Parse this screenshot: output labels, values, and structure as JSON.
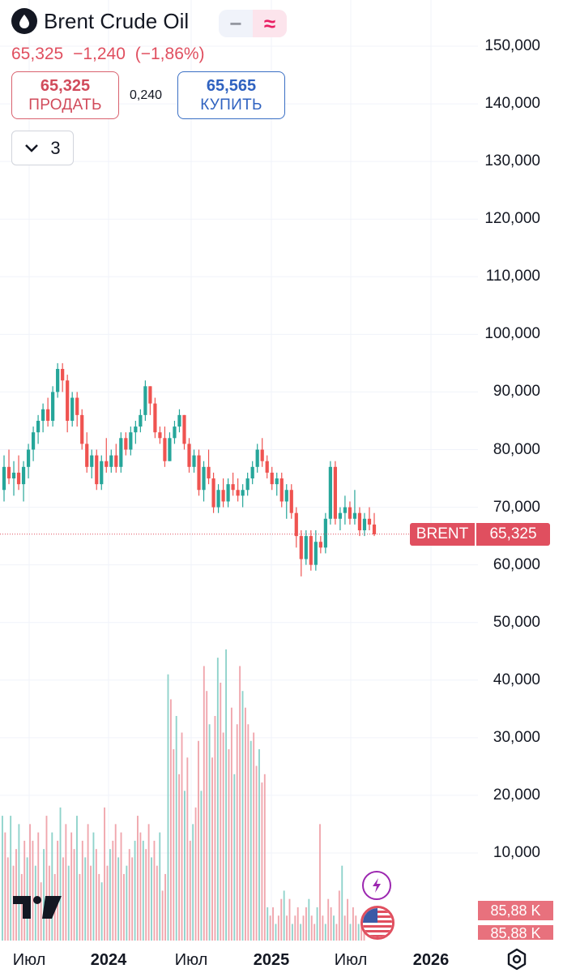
{
  "header": {
    "title": "Brent Crude Oil",
    "drop_icon": "drop-icon",
    "toggle_minus": "−",
    "toggle_approx": "≈"
  },
  "quote": {
    "last": "65,325",
    "change": "−1,240",
    "change_pct": "(−1,86%)"
  },
  "trade": {
    "sell_price": "65,325",
    "sell_label": "ПРОДАТЬ",
    "spread": "0,240",
    "buy_price": "65,565",
    "buy_label": "КУПИТЬ"
  },
  "indicators": {
    "count": "3",
    "chevron_icon": "chevron-down-icon"
  },
  "price_axis": {
    "labels": [
      "150,000",
      "140,000",
      "130,000",
      "120,000",
      "110,000",
      "100,000",
      "90,000",
      "80,000",
      "70,000",
      "60,000",
      "50,000",
      "40,000",
      "30,000",
      "20,000",
      "10,000"
    ]
  },
  "time_axis": {
    "labels": [
      {
        "text": "Июл",
        "bold": false
      },
      {
        "text": "2024",
        "bold": true
      },
      {
        "text": "Июл",
        "bold": false
      },
      {
        "text": "2025",
        "bold": true
      },
      {
        "text": "Июл",
        "bold": false
      },
      {
        "text": "2026",
        "bold": true
      }
    ]
  },
  "last_price_tag": {
    "symbol": "BRENT",
    "value": "65,325"
  },
  "volume_tags": [
    "85,88 K",
    "85,88 K"
  ],
  "colors": {
    "up": "#26a69a",
    "down": "#ef5350",
    "accent_red": "#e04f5f",
    "accent_blue": "#2f62c0"
  },
  "chart_data": {
    "type": "candlestick",
    "y_range": [
      0,
      150
    ],
    "ohlc_weekly": [
      {
        "o": 73,
        "h": 79,
        "l": 71,
        "c": 77
      },
      {
        "o": 77,
        "h": 80,
        "l": 74,
        "c": 75
      },
      {
        "o": 75,
        "h": 78,
        "l": 72,
        "c": 76
      },
      {
        "o": 76,
        "h": 79,
        "l": 73,
        "c": 74
      },
      {
        "o": 74,
        "h": 78,
        "l": 71,
        "c": 77
      },
      {
        "o": 77,
        "h": 81,
        "l": 75,
        "c": 80
      },
      {
        "o": 80,
        "h": 84,
        "l": 78,
        "c": 83
      },
      {
        "o": 83,
        "h": 86,
        "l": 81,
        "c": 85
      },
      {
        "o": 85,
        "h": 88,
        "l": 83,
        "c": 87
      },
      {
        "o": 87,
        "h": 89,
        "l": 84,
        "c": 85
      },
      {
        "o": 85,
        "h": 91,
        "l": 84,
        "c": 90
      },
      {
        "o": 90,
        "h": 95,
        "l": 89,
        "c": 94
      },
      {
        "o": 94,
        "h": 95,
        "l": 90,
        "c": 92
      },
      {
        "o": 92,
        "h": 93,
        "l": 83,
        "c": 85
      },
      {
        "o": 85,
        "h": 90,
        "l": 84,
        "c": 89
      },
      {
        "o": 89,
        "h": 90,
        "l": 84,
        "c": 86
      },
      {
        "o": 86,
        "h": 87,
        "l": 80,
        "c": 81
      },
      {
        "o": 81,
        "h": 83,
        "l": 76,
        "c": 77
      },
      {
        "o": 77,
        "h": 80,
        "l": 75,
        "c": 79
      },
      {
        "o": 79,
        "h": 80,
        "l": 73,
        "c": 74
      },
      {
        "o": 74,
        "h": 79,
        "l": 73,
        "c": 78
      },
      {
        "o": 78,
        "h": 82,
        "l": 76,
        "c": 77
      },
      {
        "o": 77,
        "h": 80,
        "l": 76,
        "c": 79
      },
      {
        "o": 79,
        "h": 81,
        "l": 76,
        "c": 77
      },
      {
        "o": 77,
        "h": 83,
        "l": 76,
        "c": 82
      },
      {
        "o": 82,
        "h": 83,
        "l": 79,
        "c": 80
      },
      {
        "o": 80,
        "h": 84,
        "l": 79,
        "c": 83
      },
      {
        "o": 83,
        "h": 85,
        "l": 81,
        "c": 84
      },
      {
        "o": 84,
        "h": 87,
        "l": 83,
        "c": 86
      },
      {
        "o": 86,
        "h": 92,
        "l": 85,
        "c": 91
      },
      {
        "o": 91,
        "h": 91,
        "l": 86,
        "c": 88
      },
      {
        "o": 88,
        "h": 89,
        "l": 82,
        "c": 83
      },
      {
        "o": 83,
        "h": 84,
        "l": 81,
        "c": 82
      },
      {
        "o": 82,
        "h": 84,
        "l": 77,
        "c": 78
      },
      {
        "o": 78,
        "h": 83,
        "l": 78,
        "c": 82
      },
      {
        "o": 82,
        "h": 85,
        "l": 81,
        "c": 84
      },
      {
        "o": 84,
        "h": 87,
        "l": 83,
        "c": 86
      },
      {
        "o": 86,
        "h": 86,
        "l": 80,
        "c": 81
      },
      {
        "o": 81,
        "h": 82,
        "l": 76,
        "c": 77
      },
      {
        "o": 77,
        "h": 80,
        "l": 76,
        "c": 79
      },
      {
        "o": 79,
        "h": 80,
        "l": 72,
        "c": 73
      },
      {
        "o": 73,
        "h": 78,
        "l": 71,
        "c": 77
      },
      {
        "o": 77,
        "h": 80,
        "l": 74,
        "c": 75
      },
      {
        "o": 75,
        "h": 76,
        "l": 69,
        "c": 70
      },
      {
        "o": 70,
        "h": 74,
        "l": 69,
        "c": 73
      },
      {
        "o": 73,
        "h": 75,
        "l": 70,
        "c": 71
      },
      {
        "o": 71,
        "h": 75,
        "l": 70,
        "c": 74
      },
      {
        "o": 74,
        "h": 76,
        "l": 72,
        "c": 73
      },
      {
        "o": 73,
        "h": 75,
        "l": 71,
        "c": 72
      },
      {
        "o": 72,
        "h": 74,
        "l": 70,
        "c": 73
      },
      {
        "o": 73,
        "h": 76,
        "l": 72,
        "c": 75
      },
      {
        "o": 75,
        "h": 78,
        "l": 74,
        "c": 77
      },
      {
        "o": 77,
        "h": 81,
        "l": 76,
        "c": 80
      },
      {
        "o": 80,
        "h": 82,
        "l": 77,
        "c": 78
      },
      {
        "o": 78,
        "h": 79,
        "l": 75,
        "c": 76
      },
      {
        "o": 76,
        "h": 77,
        "l": 73,
        "c": 74
      },
      {
        "o": 74,
        "h": 76,
        "l": 72,
        "c": 75
      },
      {
        "o": 75,
        "h": 76,
        "l": 70,
        "c": 71
      },
      {
        "o": 71,
        "h": 74,
        "l": 68,
        "c": 73
      },
      {
        "o": 73,
        "h": 74,
        "l": 68,
        "c": 69
      },
      {
        "o": 69,
        "h": 70,
        "l": 63,
        "c": 65
      },
      {
        "o": 65,
        "h": 66,
        "l": 58,
        "c": 61
      },
      {
        "o": 61,
        "h": 66,
        "l": 60,
        "c": 65
      },
      {
        "o": 65,
        "h": 66,
        "l": 59,
        "c": 60
      },
      {
        "o": 60,
        "h": 66,
        "l": 59,
        "c": 64
      },
      {
        "o": 64,
        "h": 65,
        "l": 62,
        "c": 63
      },
      {
        "o": 63,
        "h": 69,
        "l": 62,
        "c": 68
      },
      {
        "o": 68,
        "h": 78,
        "l": 67,
        "c": 77
      },
      {
        "o": 77,
        "h": 78,
        "l": 67,
        "c": 68
      },
      {
        "o": 68,
        "h": 70,
        "l": 66,
        "c": 69
      },
      {
        "o": 69,
        "h": 72,
        "l": 67,
        "c": 70
      },
      {
        "o": 70,
        "h": 71,
        "l": 67,
        "c": 68
      },
      {
        "o": 68,
        "h": 73,
        "l": 67,
        "c": 69
      },
      {
        "o": 69,
        "h": 70,
        "l": 65,
        "c": 66
      },
      {
        "o": 66,
        "h": 69,
        "l": 65,
        "c": 68
      },
      {
        "o": 68,
        "h": 70,
        "l": 66,
        "c": 67
      },
      {
        "o": 67,
        "h": 69,
        "l": 65,
        "c": 65.3
      }
    ],
    "volume_thousands": [
      15,
      13,
      10,
      15,
      9,
      11,
      14,
      8,
      12,
      10,
      14,
      12,
      9,
      13,
      7,
      11,
      15,
      9,
      13,
      8,
      12,
      16,
      10,
      14,
      9,
      13,
      11,
      15,
      8,
      12,
      10,
      14,
      9,
      13,
      11,
      8,
      7,
      16,
      9,
      11,
      12,
      14,
      10,
      13,
      8,
      9,
      11,
      10,
      12,
      15,
      13,
      12,
      11,
      14,
      10,
      12,
      9,
      13,
      6,
      8,
      32,
      29,
      23,
      27,
      20,
      25,
      18,
      22,
      12,
      14,
      16,
      24,
      18,
      33,
      30,
      26,
      22,
      27,
      34,
      31,
      25,
      35,
      23,
      28,
      20,
      26,
      33,
      30,
      28,
      26,
      24,
      25,
      21,
      23,
      19,
      20,
      4,
      3,
      4,
      2,
      3,
      5,
      6,
      3,
      5,
      2,
      3,
      4,
      2,
      3,
      4,
      5,
      3,
      2,
      4,
      14,
      3,
      2,
      5,
      4,
      3,
      2,
      6,
      9,
      3,
      5,
      2,
      4,
      3,
      2,
      2,
      3
    ],
    "last_price": 65.325
  }
}
